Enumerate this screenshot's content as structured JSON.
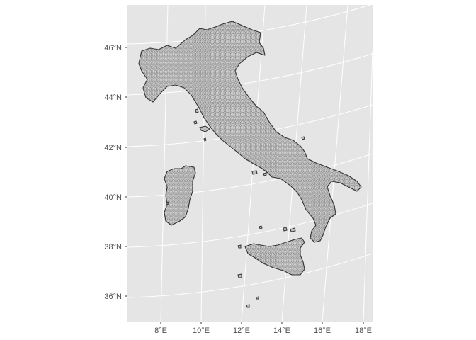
{
  "map": {
    "projection": "conic (meridians converge northward)",
    "panel_background": "#e5e5e5",
    "grid_color": "#ffffff",
    "land_pattern": "hexagonal grid cells",
    "land_fill": "#cfcfcf",
    "outline_color": "#333333",
    "lat_labels": [
      "46°N",
      "44°N",
      "42°N",
      "40°N",
      "38°N",
      "36°N"
    ],
    "lon_labels": [
      "8°E",
      "10°E",
      "12°E",
      "14°E",
      "16°E",
      "18°E"
    ],
    "features": [
      "mainland",
      "sardinia",
      "sicily",
      "elba",
      "islets"
    ]
  }
}
